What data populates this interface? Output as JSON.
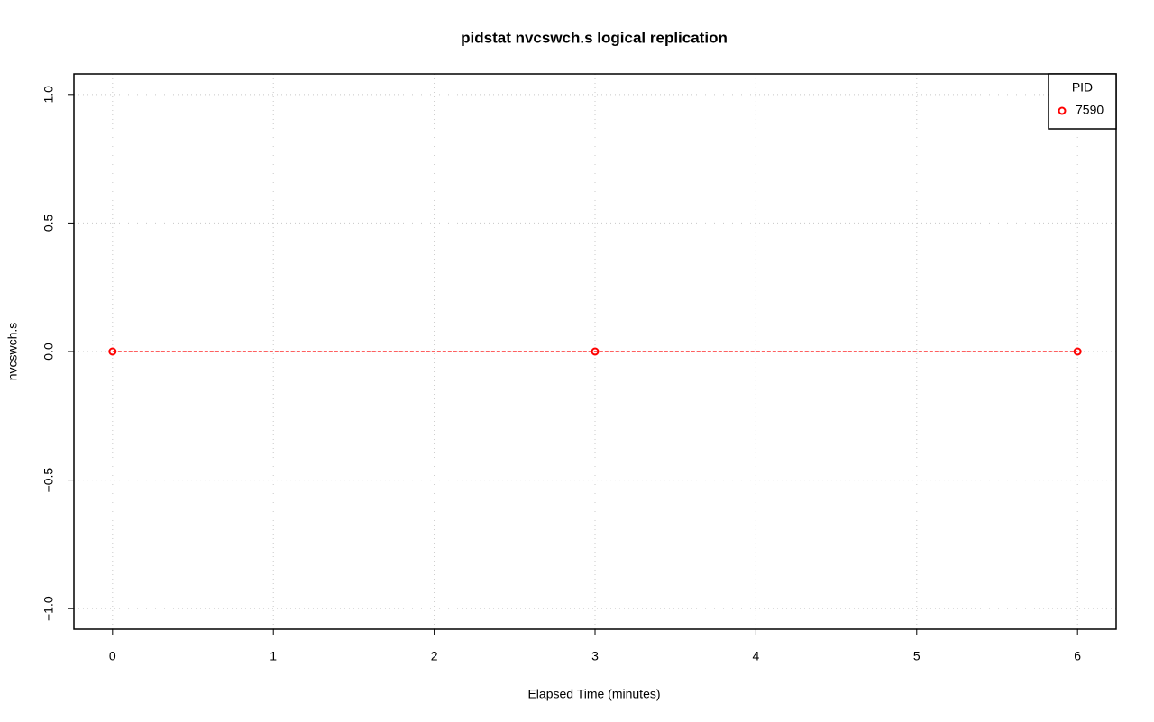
{
  "chart_data": {
    "type": "line",
    "title": "pidstat nvcswch.s logical replication",
    "x_label": "Elapsed Time (minutes)",
    "y_label": "nvcswch.s",
    "x": [
      0,
      3,
      6
    ],
    "series": [
      {
        "name": "7590",
        "color": "#ff0000",
        "values": [
          0,
          0,
          0
        ]
      }
    ],
    "legend_title": "PID",
    "legend": "topright",
    "grid": true,
    "xlim": [
      -0.24,
      6.24
    ],
    "xticks": [
      0,
      1,
      2,
      3,
      4,
      5,
      6
    ],
    "ylim": [
      -1.08,
      1.08
    ],
    "yticks": [
      {
        "value": -1,
        "label": "−1.0"
      },
      {
        "value": -0.5,
        "label": "−0.5"
      },
      {
        "value": 0,
        "label": "0.0"
      },
      0.5,
      {
        "value": 1,
        "label": "1.0"
      }
    ]
  }
}
